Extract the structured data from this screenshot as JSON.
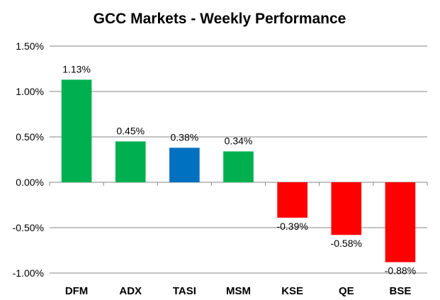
{
  "chart_data": {
    "type": "bar",
    "title": "GCC Markets - Weekly Performance",
    "categories": [
      "DFM",
      "ADX",
      "TASI",
      "MSM",
      "KSE",
      "QE",
      "BSE"
    ],
    "values": [
      1.13,
      0.45,
      0.38,
      0.34,
      -0.39,
      -0.58,
      -0.88
    ],
    "data_labels": [
      "1.13%",
      "0.45%",
      "0.38%",
      "0.34%",
      "-0.39%",
      "-0.58%",
      "-0.88%"
    ],
    "colors": [
      "#00b050",
      "#00b050",
      "#0070c0",
      "#00b050",
      "#ff0000",
      "#ff0000",
      "#ff0000"
    ],
    "yticks": [
      1.5,
      1.0,
      0.5,
      0.0,
      -0.5,
      -1.0
    ],
    "ytick_labels": [
      "1.50%",
      "1.00%",
      "0.50%",
      "0.00%",
      "-0.50%",
      "-1.00%"
    ],
    "ylim": [
      -1.0,
      1.5
    ],
    "xlabel": "",
    "ylabel": "",
    "grid": true,
    "legend": "none"
  }
}
